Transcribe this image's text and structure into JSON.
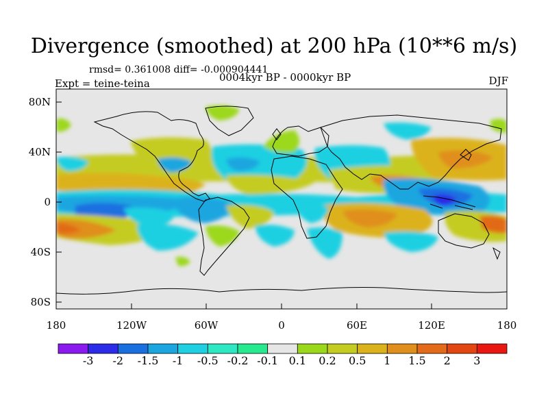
{
  "title": "Divergence (smoothed) at 200 hPa (10**6 m/s)",
  "stats": "rmsd= 0.361008  diff= -0.000904441",
  "period": "0004kyr BP - 0000kyr BP",
  "experiment": "Expt = teine-teina",
  "season": "DJF",
  "y_axis_labels": [
    "80N",
    "40N",
    "0",
    "40S",
    "80S"
  ],
  "x_axis_labels": [
    "180",
    "120W",
    "60W",
    "0",
    "60E",
    "120E",
    "180"
  ],
  "colorbar": {
    "colors": [
      "#8a1aee",
      "#2c2be8",
      "#1a6fe0",
      "#1ca6e0",
      "#1ed0e2",
      "#2ee8c4",
      "#28e890",
      "#e6e6e6",
      "#9cd81a",
      "#c4cc20",
      "#dcb21c",
      "#e08e1c",
      "#e26a18",
      "#e44612",
      "#e81810"
    ],
    "labels": [
      "-3",
      "-2",
      "-1.5",
      "-1",
      "-0.5",
      "-0.2",
      "-0.1",
      "0.1",
      "0.2",
      "0.5",
      "1",
      "1.5",
      "2",
      "3"
    ]
  }
}
